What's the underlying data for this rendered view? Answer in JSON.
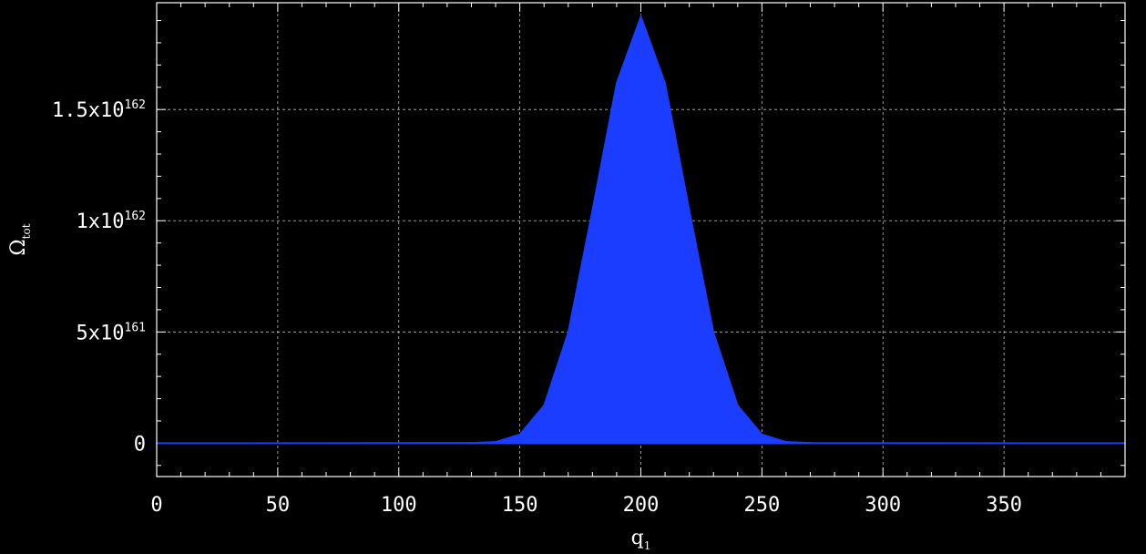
{
  "chart_data": {
    "type": "area",
    "xlabel": "q",
    "xlabel_sub": "1",
    "ylabel": "Ω",
    "ylabel_sub": "tot",
    "xlim": [
      0,
      400
    ],
    "ylim": [
      -1.5e+161,
      1.98e+162
    ],
    "x_ticks": [
      {
        "value": 0,
        "label": "0"
      },
      {
        "value": 50,
        "label": "50"
      },
      {
        "value": 100,
        "label": "100"
      },
      {
        "value": 150,
        "label": "150"
      },
      {
        "value": 200,
        "label": "200"
      },
      {
        "value": 250,
        "label": "250"
      },
      {
        "value": 300,
        "label": "300"
      },
      {
        "value": 350,
        "label": "350"
      }
    ],
    "y_ticks": [
      {
        "value": 0,
        "mantissa": "0",
        "exponent": ""
      },
      {
        "value": 5e+161,
        "mantissa": "5x10",
        "exponent": "161"
      },
      {
        "value": 1e+162,
        "mantissa": "1x10",
        "exponent": "162"
      },
      {
        "value": 1.5e+162,
        "mantissa": "1.5x10",
        "exponent": "162"
      }
    ],
    "grid": true,
    "series": [
      {
        "color": "#1a3dff",
        "x": [
          0,
          130,
          140,
          150,
          160,
          170,
          180,
          190,
          200,
          210,
          220,
          230,
          240,
          250,
          260,
          270,
          400
        ],
        "values": [
          0,
          2e+159,
          6e+159,
          4e+160,
          1.7e+161,
          5e+161,
          1.05e+162,
          1.62e+162,
          1.92e+162,
          1.62e+162,
          1.05e+162,
          5e+161,
          1.7e+161,
          4e+160,
          6e+159,
          2e+159,
          0
        ]
      }
    ]
  }
}
